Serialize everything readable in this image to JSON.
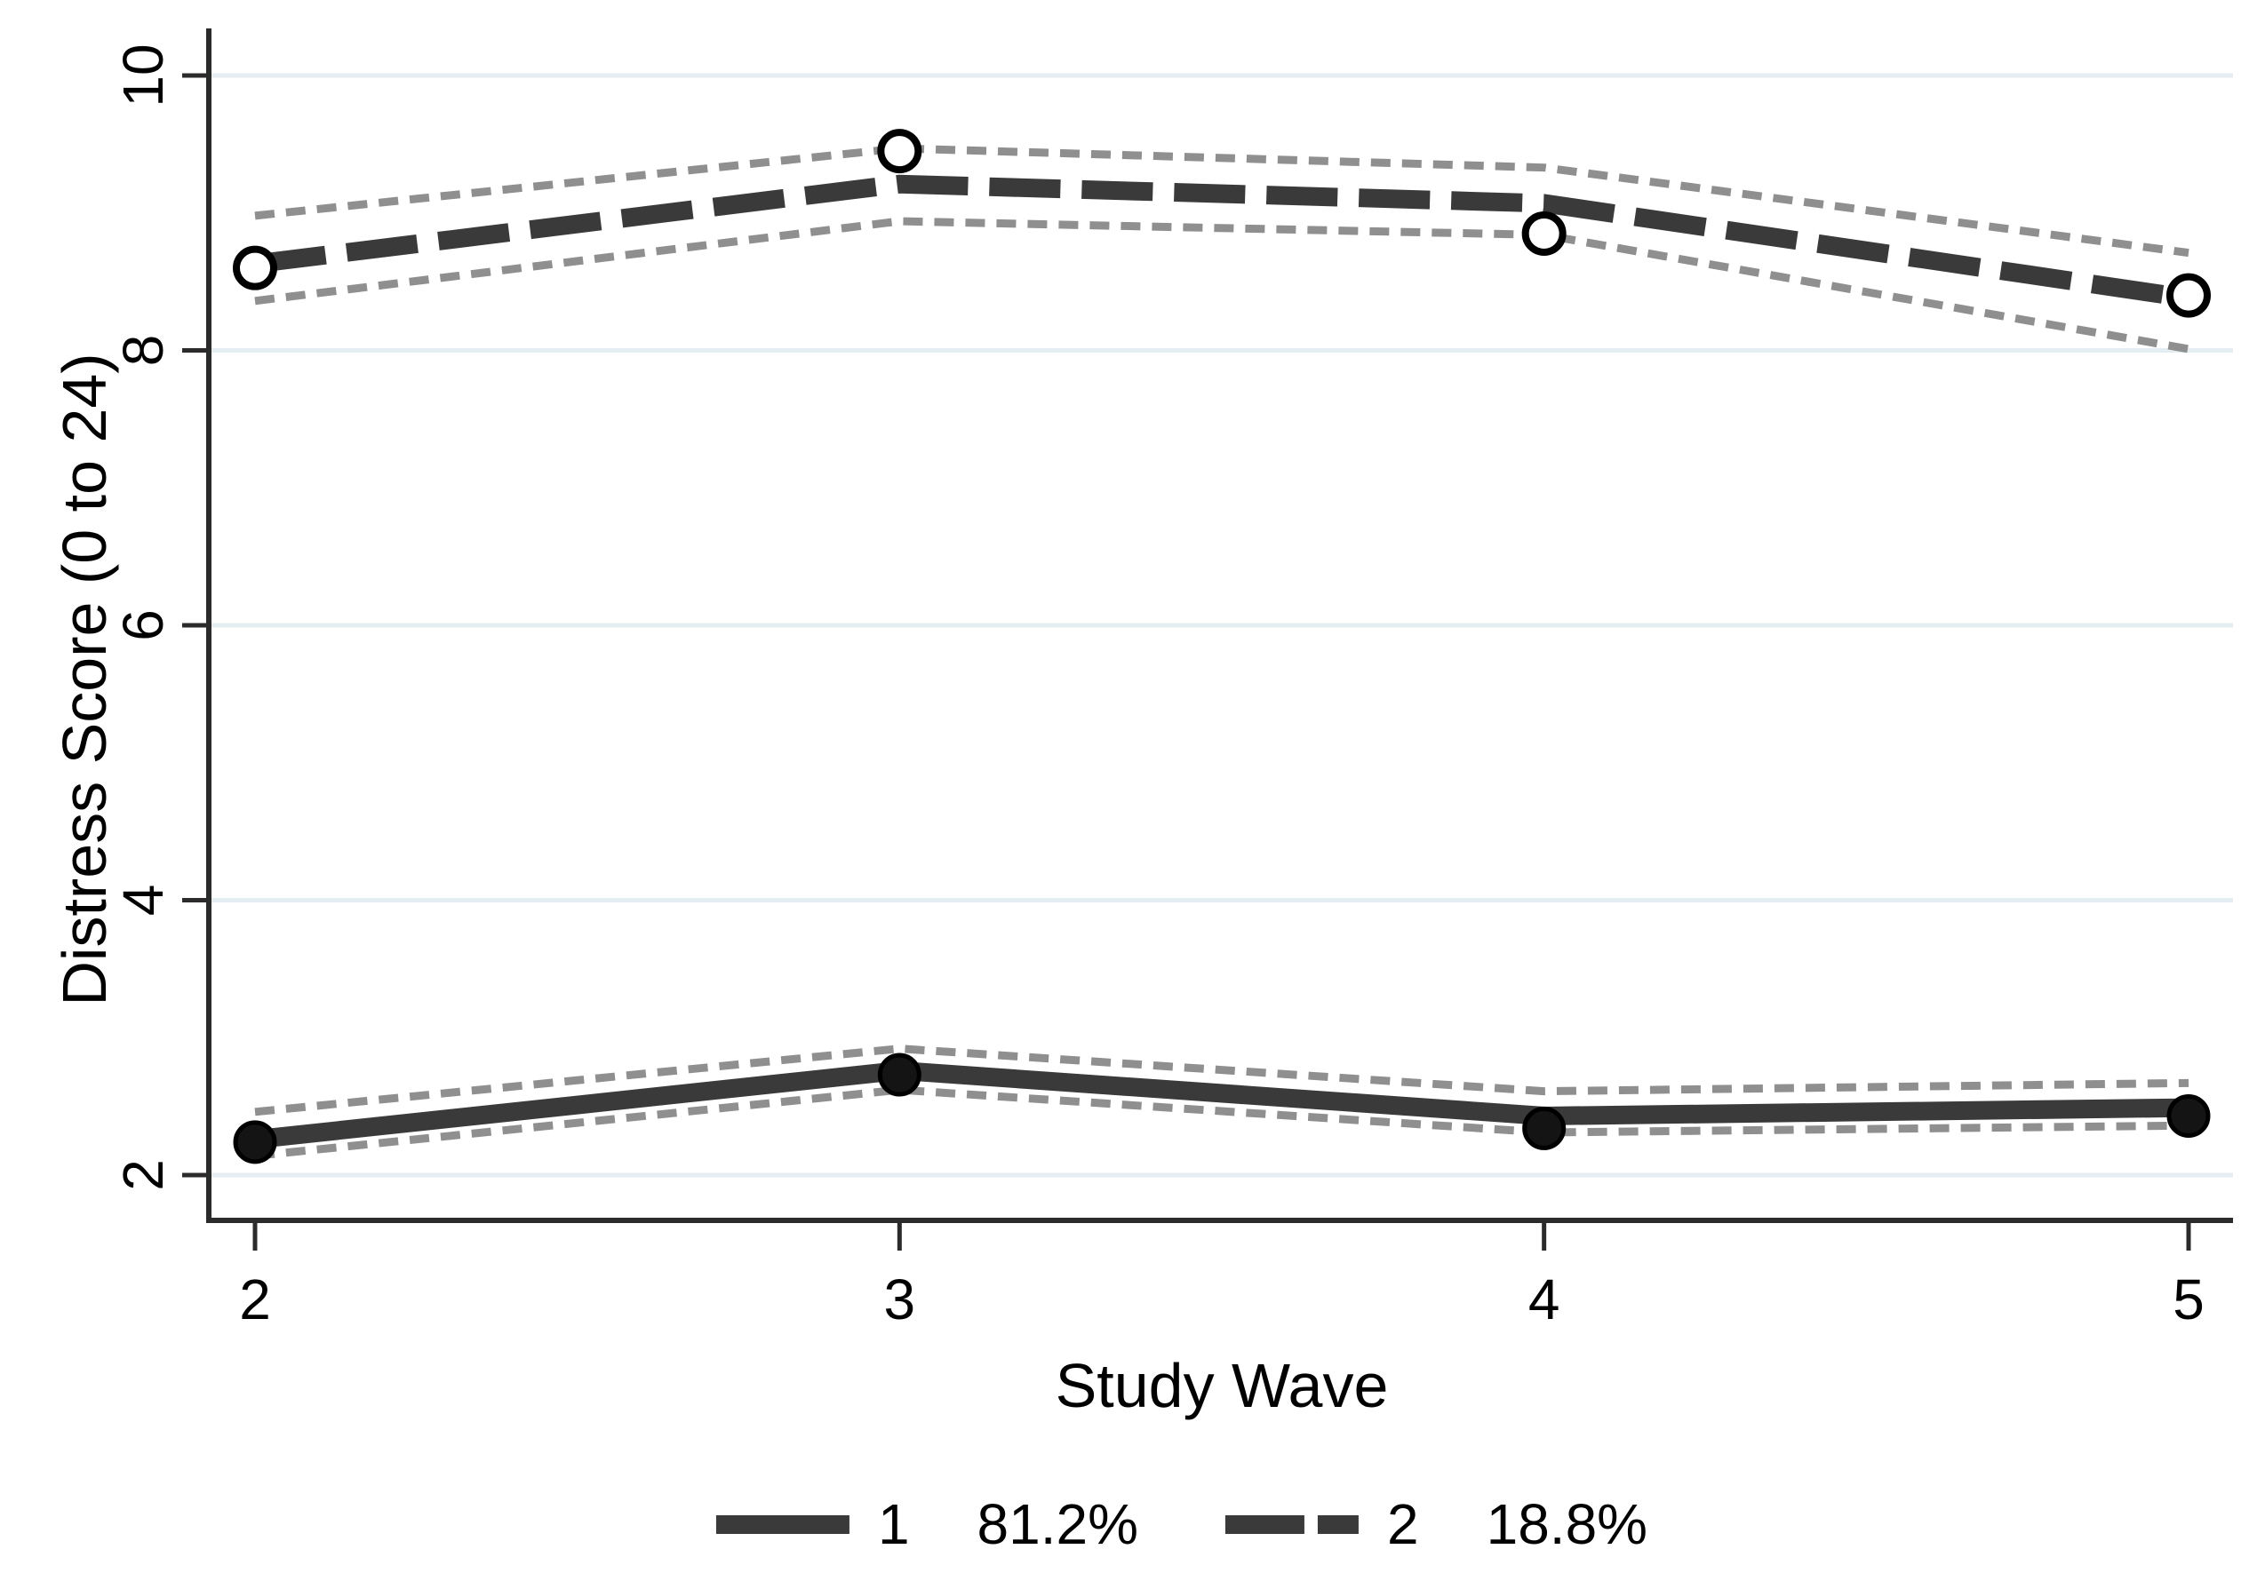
{
  "chart_data": {
    "type": "line",
    "title": "",
    "xlabel": "Study Wave",
    "ylabel": "Distress Score (0 to 24)",
    "x": [
      2,
      3,
      4,
      5
    ],
    "x_tick_labels": [
      "2",
      "3",
      "4",
      "5"
    ],
    "y_ticks": [
      2,
      4,
      6,
      8,
      10
    ],
    "y_tick_labels": [
      "2",
      "4",
      "6",
      "8",
      "10"
    ],
    "xlim": [
      1.93,
      5.07
    ],
    "ylim": [
      1.7,
      10.4
    ],
    "grid": "horizontal",
    "legend_position": "bottom-center",
    "colors": {
      "line": "#3a3a3a",
      "marker_fill": "#141414",
      "marker_ring": "#000000",
      "ci": "#8f8f8f",
      "grid": "#e4eef2",
      "axis": "#2b2b2b",
      "text": "#000000",
      "background": "#ffffff"
    },
    "series": [
      {
        "name": "1",
        "percent_label": "81.2%",
        "line_style": "solid",
        "marker": "filled-circle",
        "line_values": [
          2.26,
          2.76,
          2.43,
          2.49
        ],
        "marker_values": [
          2.24,
          2.73,
          2.34,
          2.43
        ],
        "ci_upper": [
          2.46,
          2.92,
          2.61,
          2.67
        ],
        "ci_lower": [
          2.14,
          2.62,
          2.31,
          2.36
        ]
      },
      {
        "name": "2",
        "percent_label": "18.8%",
        "line_style": "dashed",
        "marker": "open-circle",
        "line_values": [
          8.63,
          9.21,
          9.07,
          8.38
        ],
        "marker_values": [
          8.6,
          9.45,
          8.85,
          8.4
        ],
        "ci_upper": [
          8.98,
          9.47,
          9.33,
          8.71
        ],
        "ci_lower": [
          8.36,
          8.94,
          8.84,
          8.01
        ]
      }
    ]
  }
}
